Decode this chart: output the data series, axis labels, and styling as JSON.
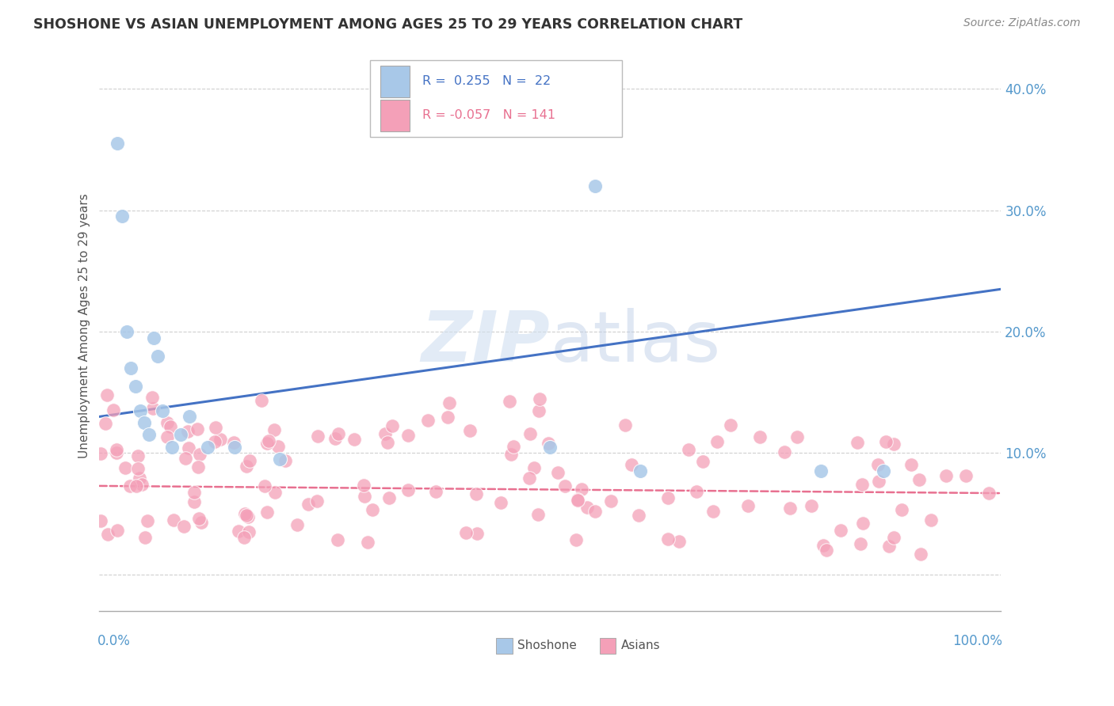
{
  "title": "SHOSHONE VS ASIAN UNEMPLOYMENT AMONG AGES 25 TO 29 YEARS CORRELATION CHART",
  "source_text": "Source: ZipAtlas.com",
  "ylabel": "Unemployment Among Ages 25 to 29 years",
  "xlim": [
    0.0,
    1.0
  ],
  "ylim": [
    -0.03,
    0.44
  ],
  "shoshone_color": "#A8C8E8",
  "asian_color": "#F4A0B8",
  "shoshone_line_color": "#4472C4",
  "asian_line_color": "#E87090",
  "background_color": "#FFFFFF",
  "grid_color": "#BBBBBB",
  "title_color": "#333333",
  "watermark_color": "#C8D8EE",
  "ytick_color": "#5599CC",
  "sho_line_start_y": 0.13,
  "sho_line_end_y": 0.235,
  "asian_line_y": 0.07,
  "shoshone_x": [
    0.02,
    0.025,
    0.03,
    0.035,
    0.04,
    0.045,
    0.05,
    0.055,
    0.06,
    0.065,
    0.07,
    0.08,
    0.09,
    0.1,
    0.12,
    0.15,
    0.2,
    0.5,
    0.55,
    0.6,
    0.8,
    0.87
  ],
  "shoshone_y": [
    0.355,
    0.295,
    0.2,
    0.17,
    0.155,
    0.135,
    0.125,
    0.115,
    0.195,
    0.18,
    0.135,
    0.105,
    0.115,
    0.13,
    0.105,
    0.105,
    0.095,
    0.105,
    0.32,
    0.085,
    0.085,
    0.085
  ],
  "asian_seed": 99
}
